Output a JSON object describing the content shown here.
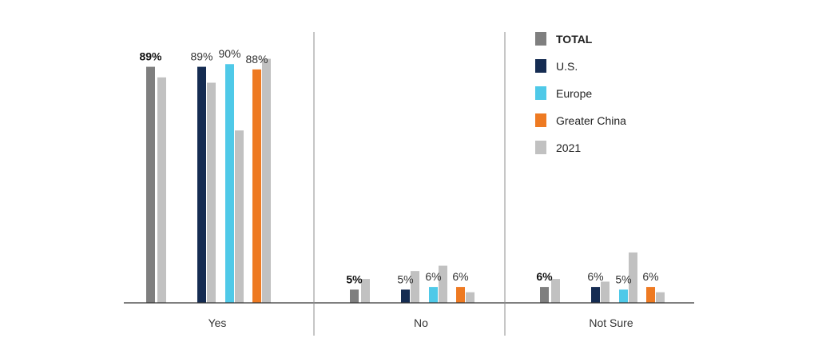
{
  "chart_data": {
    "type": "bar",
    "categories": [
      "Yes",
      "No",
      "Not Sure"
    ],
    "ylim": [
      0,
      100
    ],
    "grid": false,
    "legend_position": "right",
    "series": [
      {
        "name": "TOTAL",
        "color": "#7f7f7f",
        "bold": true,
        "values": [
          89,
          5,
          6
        ],
        "labels": [
          "89%",
          "5%",
          "6%"
        ]
      },
      {
        "name": "2021",
        "color": "#c1c1c1",
        "values": [
          85,
          9,
          9
        ],
        "labels": [
          null,
          null,
          null
        ]
      },
      {
        "name": "U.S.",
        "color": "#152c52",
        "values": [
          89,
          5,
          6
        ],
        "labels": [
          "89%",
          "5%",
          "6%"
        ]
      },
      {
        "name": "2021",
        "color": "#c1c1c1",
        "values": [
          83,
          12,
          8
        ],
        "labels": [
          null,
          null,
          null
        ]
      },
      {
        "name": "Europe",
        "color": "#4fc9e8",
        "values": [
          90,
          6,
          5
        ],
        "labels": [
          "90%",
          "6%",
          "5%"
        ]
      },
      {
        "name": "2021",
        "color": "#c1c1c1",
        "values": [
          65,
          14,
          19
        ],
        "labels": [
          null,
          null,
          null
        ]
      },
      {
        "name": "Greater China",
        "color": "#ee7a22",
        "values": [
          88,
          6,
          6
        ],
        "labels": [
          "88%",
          "6%",
          "6%"
        ]
      },
      {
        "name": "2021",
        "color": "#c1c1c1",
        "values": [
          92,
          4,
          4
        ],
        "labels": [
          null,
          null,
          null
        ]
      }
    ],
    "legend": [
      {
        "label": "TOTAL",
        "color": "#7f7f7f",
        "bold": true
      },
      {
        "label": "U.S.",
        "color": "#152c52",
        "bold": false
      },
      {
        "label": "Europe",
        "color": "#4fc9e8",
        "bold": false
      },
      {
        "label": "Greater China",
        "color": "#ee7a22",
        "bold": false
      },
      {
        "label": "2021",
        "color": "#c1c1c1",
        "bold": false
      }
    ]
  }
}
